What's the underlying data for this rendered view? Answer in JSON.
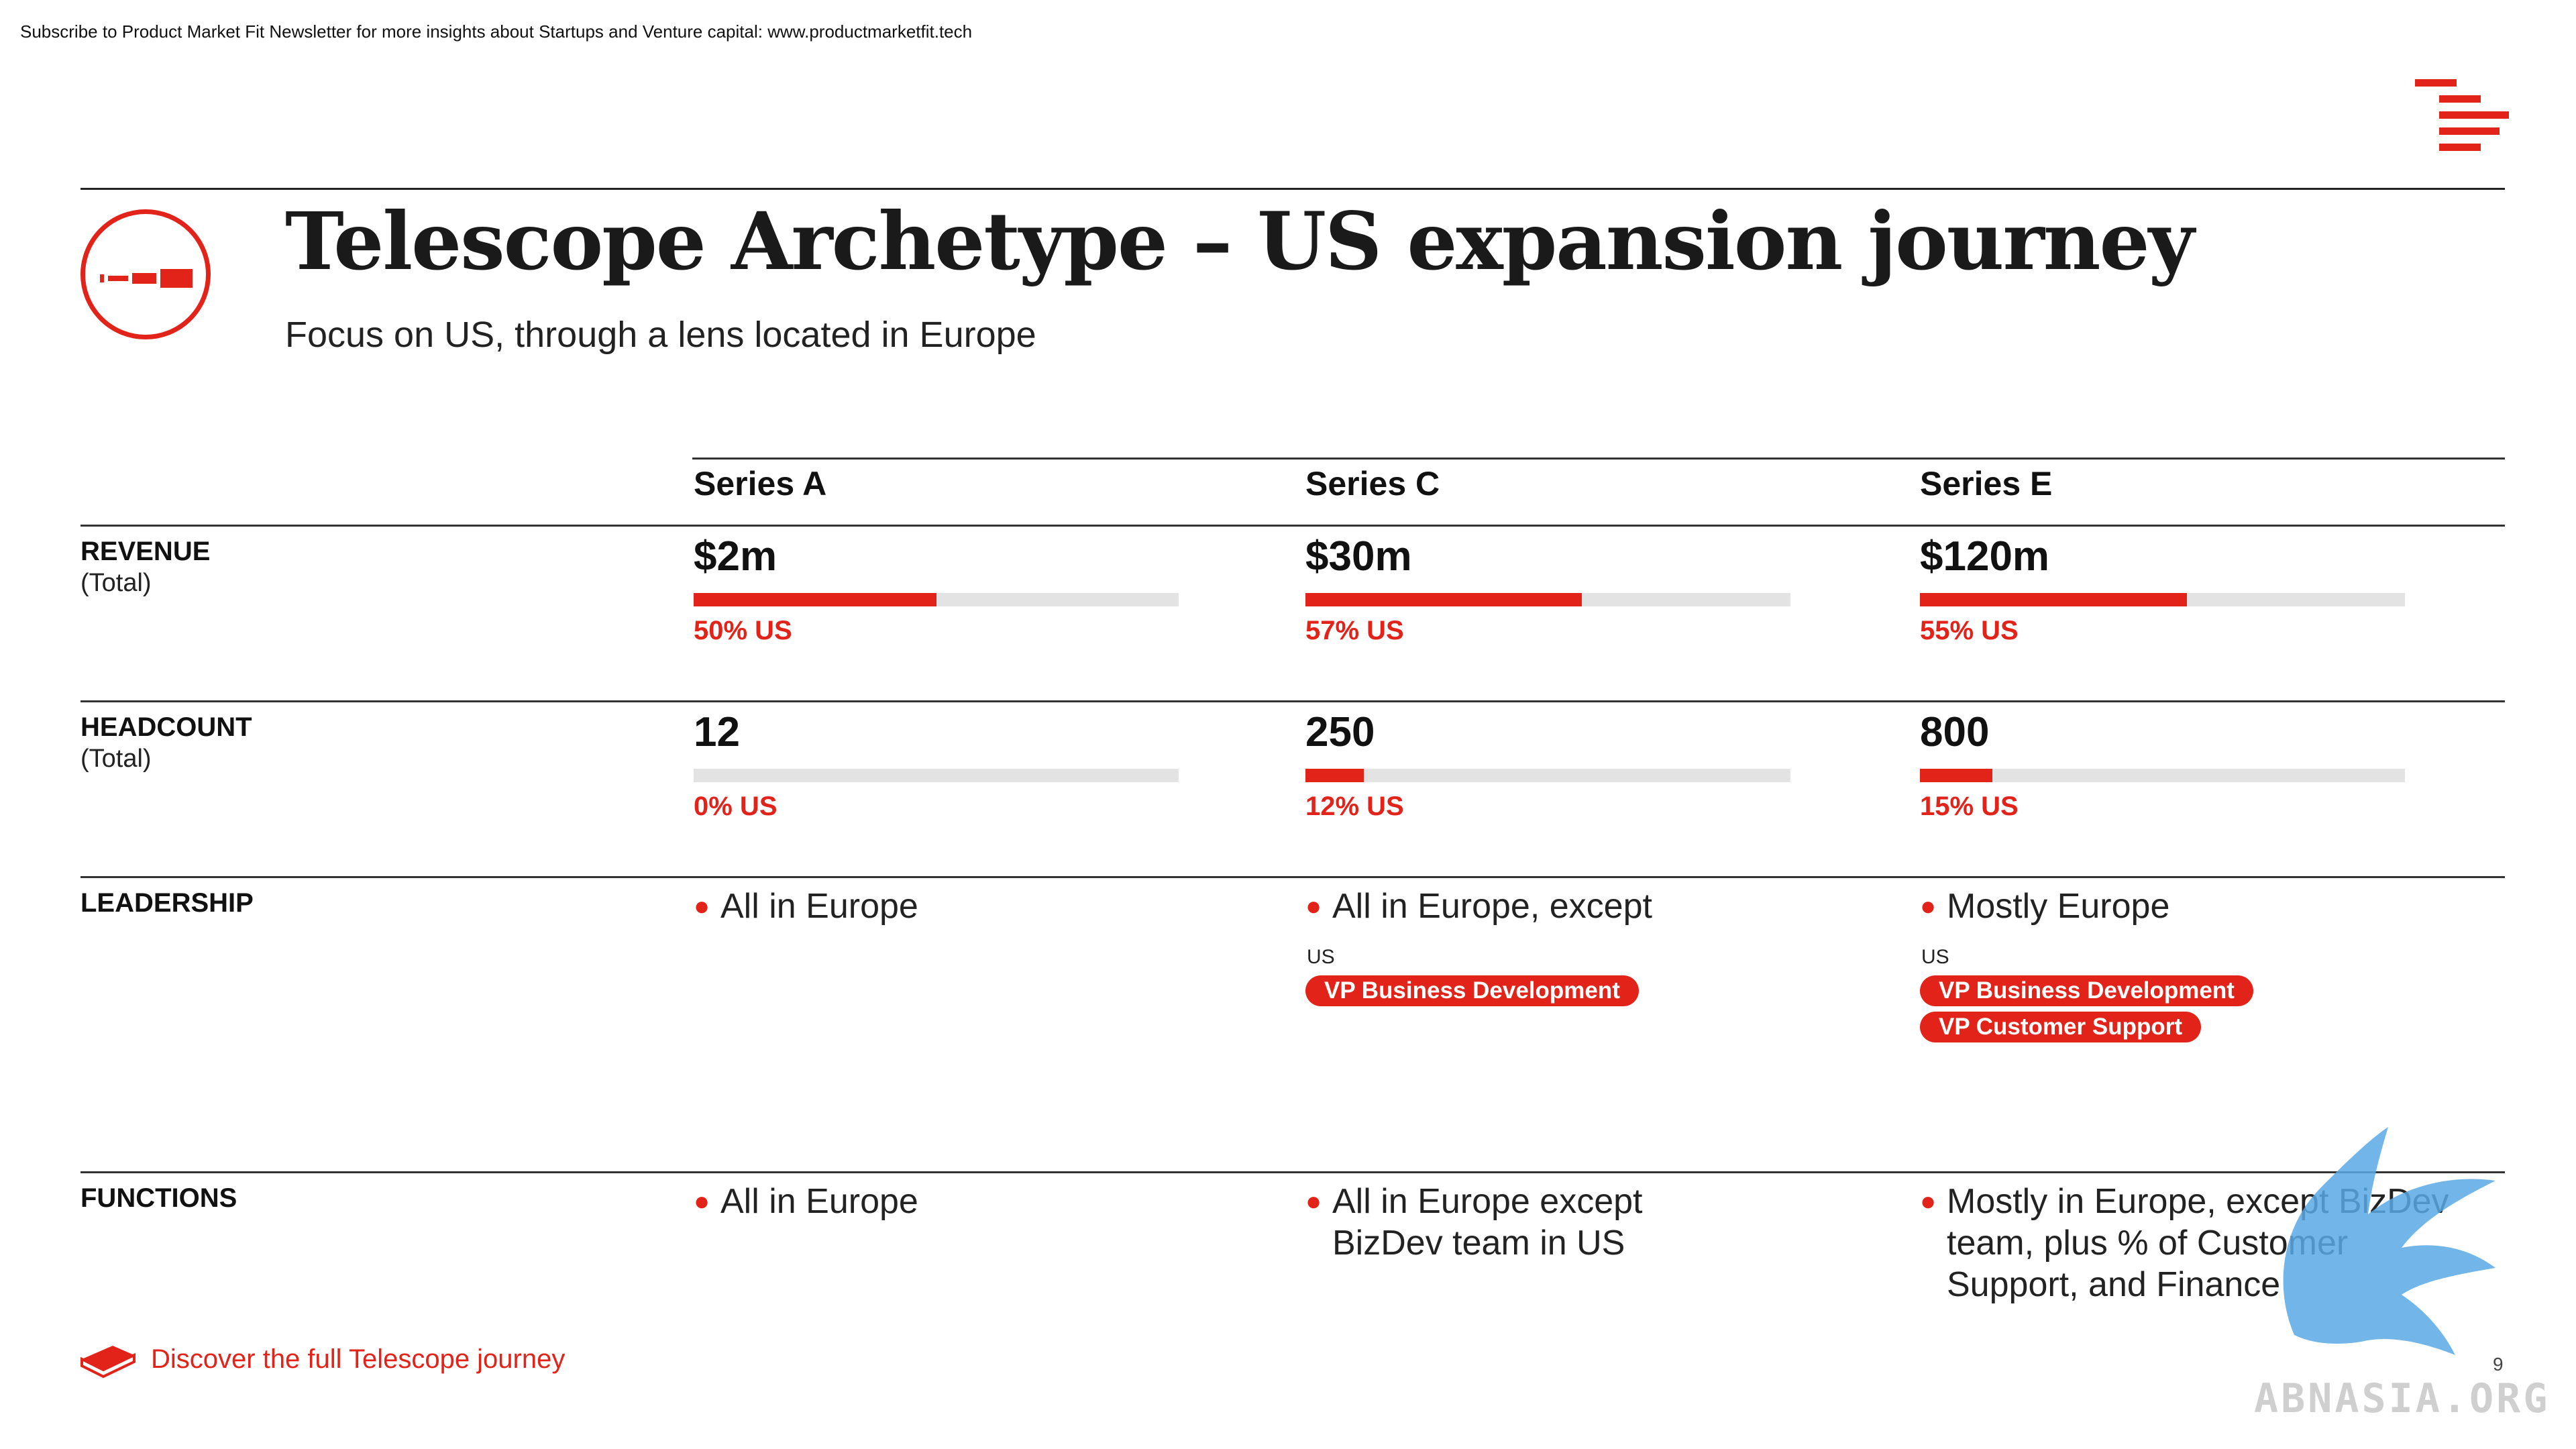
{
  "top_note": "Subscribe to Product Market Fit Newsletter for more insights about Startups and Venture capital:  www.productmarketfit.tech",
  "title": "Telescope Archetype – US expansion journey",
  "subtitle": "Focus on US, through a lens located in Europe",
  "columns": [
    "Series A",
    "Series C",
    "Series E"
  ],
  "rows": {
    "revenue": {
      "label": "REVENUE",
      "sub": "(Total)"
    },
    "headcount": {
      "label": "HEADCOUNT",
      "sub": "(Total)"
    },
    "leadership": {
      "label": "LEADERSHIP"
    },
    "functions": {
      "label": "FUNCTIONS"
    }
  },
  "revenue": [
    {
      "value": "$2m",
      "us_share": 0.5,
      "us_label": "50% US"
    },
    {
      "value": "$30m",
      "us_share": 0.57,
      "us_label": "57% US"
    },
    {
      "value": "$120m",
      "us_share": 0.55,
      "us_label": "55% US"
    }
  ],
  "headcount": [
    {
      "value": "12",
      "us_share": 0.0,
      "us_label": "0% US"
    },
    {
      "value": "250",
      "us_share": 0.12,
      "us_label": "12% US"
    },
    {
      "value": "800",
      "us_share": 0.15,
      "us_label": "15% US"
    }
  ],
  "leadership": [
    {
      "text": "All in Europe"
    },
    {
      "text": "All in Europe, except",
      "us_label": "US",
      "roles": [
        "VP Business Development"
      ]
    },
    {
      "text": "Mostly Europe",
      "us_label": "US",
      "roles": [
        "VP Business Development",
        "VP Customer Support"
      ]
    }
  ],
  "functions": [
    {
      "text": "All in Europe"
    },
    {
      "text": "All in Europe except\nBizDev team in US"
    },
    {
      "text": "Mostly in Europe, except BizDev\nteam, plus % of Customer\nSupport, and Finance"
    }
  ],
  "footer_link": "Discover the full Telescope journey",
  "page_number": "9",
  "watermark": "ABNASIA.ORG",
  "colors": {
    "accent": "#e2231a",
    "track": "#e3e3e3",
    "watermark": "#5aa9e6"
  },
  "icons": [
    "telescope-icon",
    "book-icon",
    "brand-lines-icon",
    "eagle-watermark-icon"
  ]
}
